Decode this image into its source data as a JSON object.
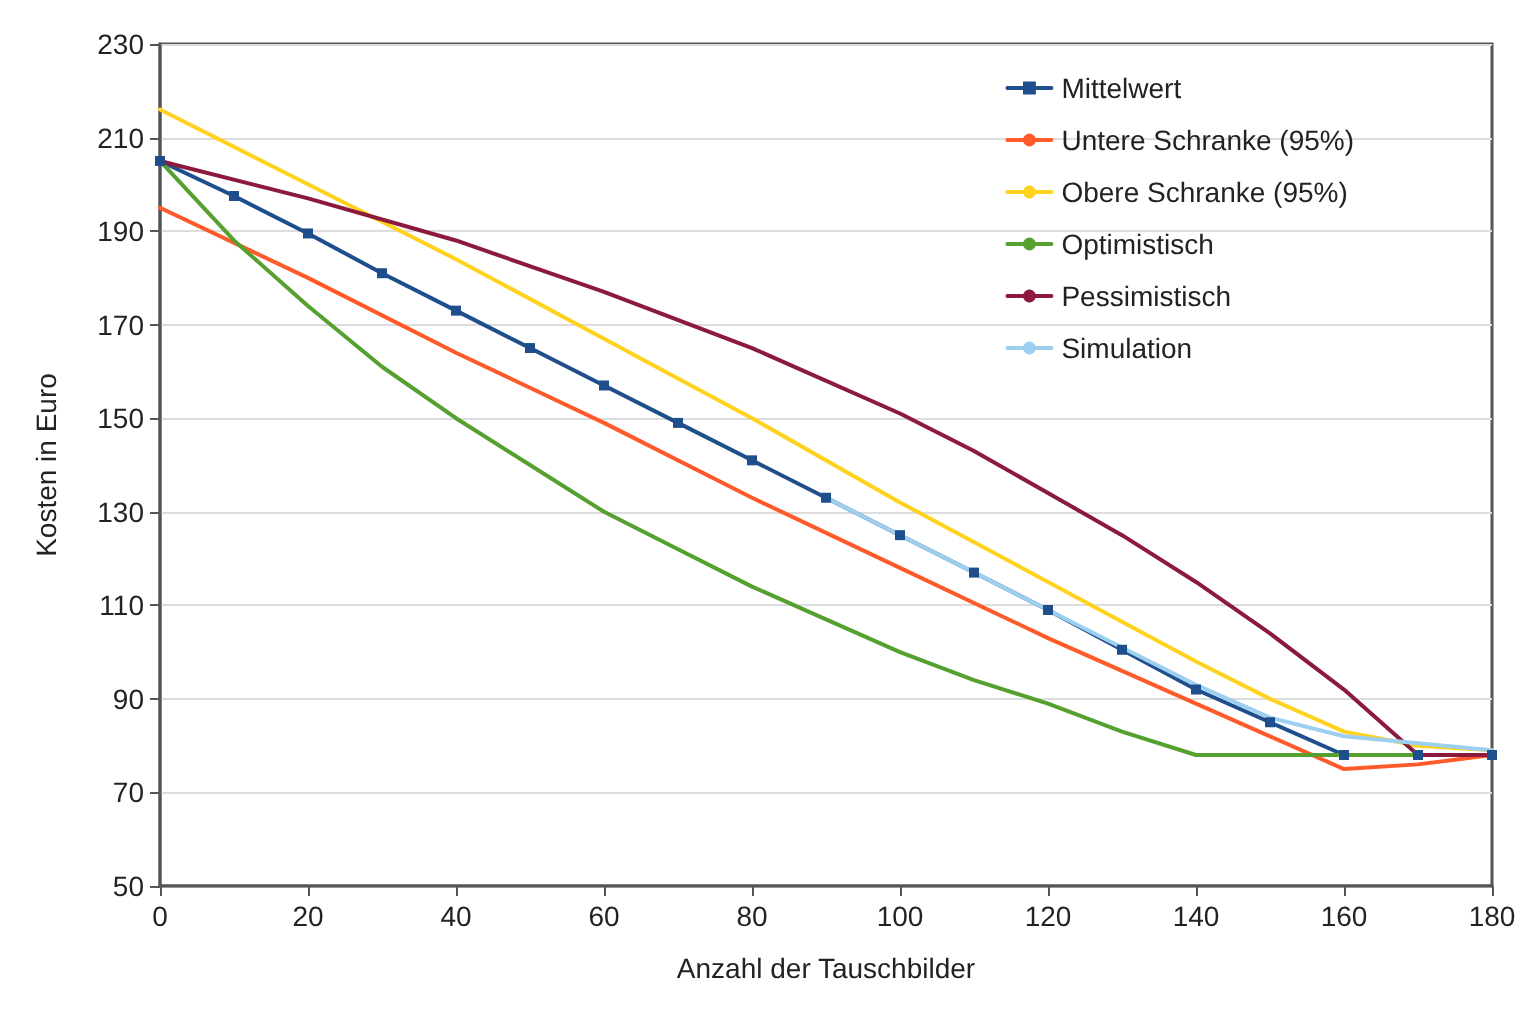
{
  "chart_data": {
    "type": "line",
    "xlabel": "Anzahl der Tauschbilder",
    "ylabel": "Kosten in Euro",
    "xlim": [
      0,
      180
    ],
    "xticks": [
      0,
      20,
      40,
      60,
      80,
      100,
      120,
      140,
      160,
      180
    ],
    "ylim": [
      50,
      230
    ],
    "yticks": [
      50,
      70,
      90,
      110,
      130,
      150,
      170,
      190,
      210,
      230
    ],
    "grid": "y",
    "legend": "top right",
    "marker": "none",
    "line_style": "solid",
    "series": [
      {
        "name": "Mittelwert",
        "color": "#1f4e8c",
        "marker": "square",
        "x": [
          0,
          10,
          20,
          30,
          40,
          50,
          60,
          70,
          80,
          90,
          100,
          110,
          120,
          130,
          140,
          150,
          160,
          170,
          180
        ],
        "values": [
          205,
          197.5,
          189.5,
          181,
          173,
          165,
          157,
          149,
          141,
          133,
          125,
          117,
          109,
          100.5,
          92,
          85,
          78,
          78,
          78
        ]
      },
      {
        "name": "Untere Schranke (95%)",
        "color": "#ff5a2a",
        "x": [
          0,
          20,
          40,
          60,
          80,
          100,
          120,
          140,
          150,
          160,
          170,
          180
        ],
        "values": [
          195,
          180,
          164,
          149,
          133,
          118,
          103,
          89,
          82,
          75,
          76,
          78
        ]
      },
      {
        "name": "Obere Schranke (95%)",
        "color": "#ffd21f",
        "x": [
          0,
          20,
          40,
          60,
          80,
          100,
          120,
          140,
          150,
          160,
          170,
          180
        ],
        "values": [
          216,
          200,
          184,
          167,
          150,
          132,
          115,
          98,
          90,
          83,
          80,
          79
        ]
      },
      {
        "name": "Optimistisch",
        "color": "#56a030",
        "x": [
          0,
          10,
          20,
          30,
          40,
          50,
          60,
          70,
          80,
          90,
          100,
          110,
          120,
          130,
          140,
          160,
          180
        ],
        "values": [
          205,
          188,
          174,
          161,
          150,
          140,
          130,
          122,
          114,
          107,
          100,
          94,
          89,
          83,
          78,
          78,
          78
        ]
      },
      {
        "name": "Pessimistisch",
        "color": "#8b1a3c",
        "x": [
          0,
          20,
          40,
          60,
          80,
          100,
          110,
          120,
          130,
          140,
          150,
          160,
          170,
          180
        ],
        "values": [
          205,
          197,
          188,
          177,
          165,
          151,
          143,
          134,
          125,
          115,
          104,
          92,
          78,
          78
        ]
      },
      {
        "name": "Simulation",
        "color": "#9dd0f0",
        "x": [
          90,
          100,
          110,
          120,
          130,
          140,
          150,
          160,
          170,
          180
        ],
        "values": [
          133,
          125,
          117,
          109,
          101,
          93,
          86,
          82,
          80.5,
          79
        ]
      }
    ]
  }
}
